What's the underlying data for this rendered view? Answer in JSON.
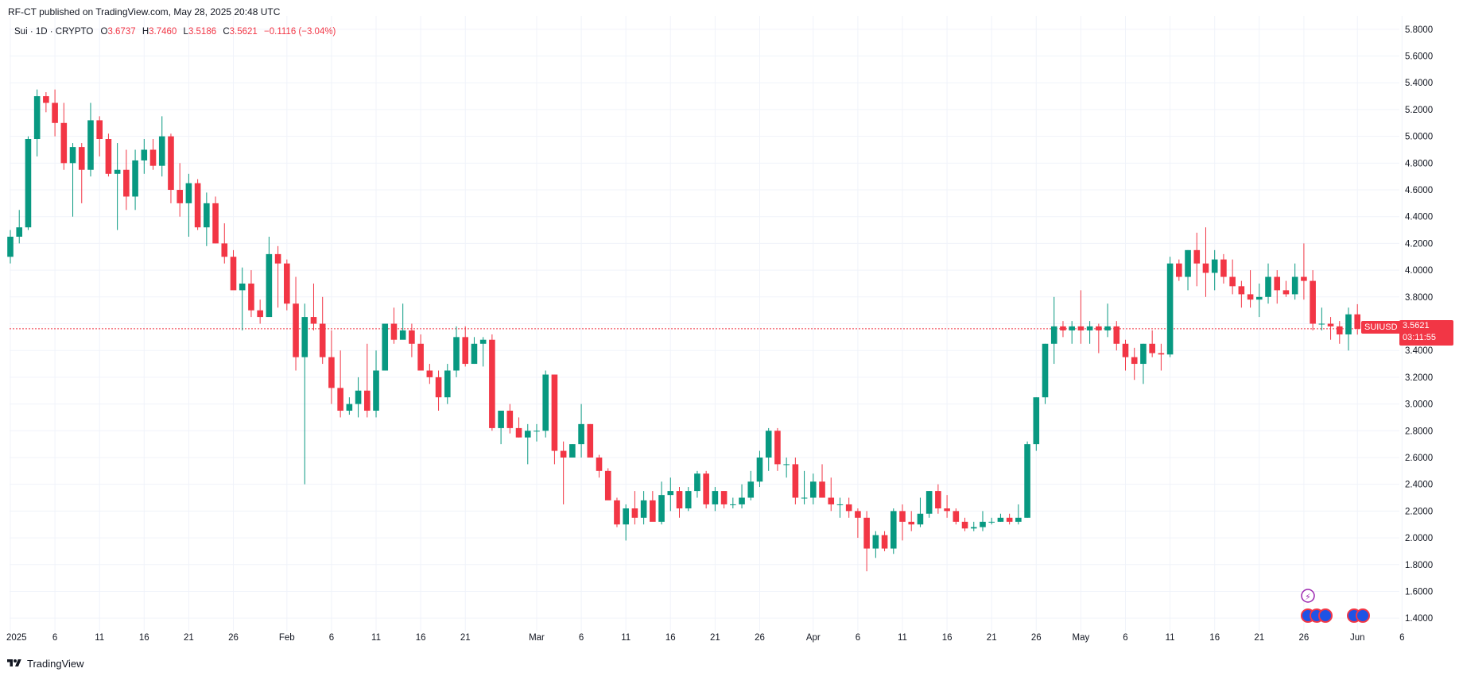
{
  "header": {
    "published": "RF-CT published on TradingView.com, May 28, 2025 20:48 UTC"
  },
  "legend": {
    "symbol": "Sui · 1D · CRYPTO",
    "o_label": "O",
    "o_value": "3.6737",
    "h_label": "H",
    "h_value": "3.7460",
    "l_label": "L",
    "l_value": "3.5186",
    "c_label": "C",
    "c_value": "3.5621",
    "change": "−0.1116 (−3.04%)"
  },
  "price_marker": {
    "ticker": "SUIUSD",
    "price": "3.5621",
    "countdown": "03:11:55"
  },
  "footer": {
    "brand": "TradingView"
  },
  "colors": {
    "up": "#089981",
    "down": "#f23645",
    "grid": "#f0f3fa",
    "axis_text": "#131722"
  },
  "chart_data": {
    "type": "candlestick",
    "ylim": [
      1.3,
      5.9
    ],
    "y_ticks": [
      "1.4000",
      "1.6000",
      "1.8000",
      "2.0000",
      "2.2000",
      "2.4000",
      "2.6000",
      "2.8000",
      "3.0000",
      "3.2000",
      "3.4000",
      "3.6000",
      "3.8000",
      "4.0000",
      "4.2000",
      "4.4000",
      "4.6000",
      "4.8000",
      "5.0000",
      "5.2000",
      "5.4000",
      "5.6000",
      "5.8000"
    ],
    "x_ticks": [
      {
        "label": "2025",
        "day": 0
      },
      {
        "label": "6",
        "day": 5
      },
      {
        "label": "11",
        "day": 10
      },
      {
        "label": "16",
        "day": 15
      },
      {
        "label": "21",
        "day": 20
      },
      {
        "label": "26",
        "day": 25
      },
      {
        "label": "Feb",
        "day": 31
      },
      {
        "label": "6",
        "day": 36
      },
      {
        "label": "11",
        "day": 41
      },
      {
        "label": "16",
        "day": 46
      },
      {
        "label": "21",
        "day": 51
      },
      {
        "label": "Mar",
        "day": 59
      },
      {
        "label": "6",
        "day": 64
      },
      {
        "label": "11",
        "day": 69
      },
      {
        "label": "16",
        "day": 74
      },
      {
        "label": "21",
        "day": 79
      },
      {
        "label": "26",
        "day": 84
      },
      {
        "label": "Apr",
        "day": 90
      },
      {
        "label": "6",
        "day": 95
      },
      {
        "label": "11",
        "day": 100
      },
      {
        "label": "16",
        "day": 105
      },
      {
        "label": "21",
        "day": 110
      },
      {
        "label": "26",
        "day": 115
      },
      {
        "label": "May",
        "day": 120
      },
      {
        "label": "6",
        "day": 125
      },
      {
        "label": "11",
        "day": 130
      },
      {
        "label": "16",
        "day": 135
      },
      {
        "label": "21",
        "day": 140
      },
      {
        "label": "26",
        "day": 145
      },
      {
        "label": "Jun",
        "day": 151
      },
      {
        "label": "6",
        "day": 156
      }
    ],
    "last_price": 3.5621,
    "candles_ohlc": [
      [
        4.1,
        4.3,
        4.05,
        4.25
      ],
      [
        4.25,
        4.45,
        4.2,
        4.32
      ],
      [
        4.32,
        5.0,
        4.3,
        4.98
      ],
      [
        4.98,
        5.35,
        4.85,
        5.3
      ],
      [
        5.3,
        5.33,
        5.18,
        5.25
      ],
      [
        5.25,
        5.35,
        5.0,
        5.1
      ],
      [
        5.1,
        5.25,
        4.75,
        4.8
      ],
      [
        4.8,
        4.95,
        4.4,
        4.92
      ],
      [
        4.92,
        4.95,
        4.5,
        4.75
      ],
      [
        4.75,
        5.25,
        4.7,
        5.12
      ],
      [
        5.12,
        5.15,
        4.85,
        4.98
      ],
      [
        4.98,
        5.02,
        4.7,
        4.72
      ],
      [
        4.72,
        4.95,
        4.3,
        4.75
      ],
      [
        4.75,
        4.9,
        4.45,
        4.55
      ],
      [
        4.55,
        4.9,
        4.45,
        4.82
      ],
      [
        4.82,
        4.98,
        4.72,
        4.9
      ],
      [
        4.9,
        4.98,
        4.75,
        4.78
      ],
      [
        4.78,
        5.15,
        4.7,
        5.0
      ],
      [
        5.0,
        5.02,
        4.5,
        4.6
      ],
      [
        4.6,
        4.8,
        4.4,
        4.5
      ],
      [
        4.5,
        4.72,
        4.25,
        4.65
      ],
      [
        4.65,
        4.68,
        4.3,
        4.32
      ],
      [
        4.32,
        4.58,
        4.18,
        4.5
      ],
      [
        4.5,
        4.55,
        4.2,
        4.2
      ],
      [
        4.2,
        4.35,
        4.05,
        4.1
      ],
      [
        4.1,
        4.15,
        3.95,
        3.85
      ],
      [
        3.85,
        4.02,
        3.55,
        3.9
      ],
      [
        3.9,
        4.0,
        3.65,
        3.7
      ],
      [
        3.7,
        3.78,
        3.6,
        3.65
      ],
      [
        3.65,
        4.25,
        3.7,
        4.12
      ],
      [
        4.12,
        4.18,
        3.72,
        4.05
      ],
      [
        4.05,
        4.08,
        3.7,
        3.75
      ],
      [
        3.75,
        3.95,
        3.25,
        3.35
      ],
      [
        3.35,
        3.75,
        2.4,
        3.65
      ],
      [
        3.65,
        3.9,
        3.55,
        3.6
      ],
      [
        3.6,
        3.8,
        3.3,
        3.35
      ],
      [
        3.35,
        3.55,
        3.0,
        3.12
      ],
      [
        3.12,
        3.4,
        2.9,
        2.95
      ],
      [
        2.95,
        3.05,
        2.92,
        3.0
      ],
      [
        3.0,
        3.2,
        2.9,
        3.1
      ],
      [
        3.1,
        3.45,
        2.9,
        2.95
      ],
      [
        2.95,
        3.4,
        2.9,
        3.25
      ],
      [
        3.25,
        3.6,
        3.25,
        3.6
      ],
      [
        3.6,
        3.72,
        3.45,
        3.48
      ],
      [
        3.48,
        3.75,
        3.5,
        3.55
      ],
      [
        3.55,
        3.6,
        3.35,
        3.45
      ],
      [
        3.45,
        3.52,
        3.25,
        3.25
      ],
      [
        3.25,
        3.3,
        3.15,
        3.2
      ],
      [
        3.2,
        3.25,
        2.95,
        3.05
      ],
      [
        3.05,
        3.3,
        3.0,
        3.25
      ],
      [
        3.25,
        3.58,
        3.2,
        3.5
      ],
      [
        3.5,
        3.58,
        3.28,
        3.3
      ],
      [
        3.3,
        3.5,
        3.3,
        3.45
      ],
      [
        3.45,
        3.5,
        3.28,
        3.48
      ],
      [
        3.48,
        3.52,
        2.8,
        2.82
      ],
      [
        2.82,
        2.95,
        2.7,
        2.95
      ],
      [
        2.95,
        3.0,
        2.78,
        2.82
      ],
      [
        2.82,
        2.9,
        2.75,
        2.75
      ],
      [
        2.75,
        2.85,
        2.55,
        2.8
      ],
      [
        2.8,
        2.85,
        2.72,
        2.8
      ],
      [
        2.8,
        3.25,
        2.75,
        3.22
      ],
      [
        3.22,
        3.22,
        2.55,
        2.65
      ],
      [
        2.65,
        2.72,
        2.25,
        2.6
      ],
      [
        2.6,
        2.7,
        2.6,
        2.7
      ],
      [
        2.7,
        3.0,
        2.6,
        2.85
      ],
      [
        2.85,
        2.85,
        2.6,
        2.6
      ],
      [
        2.6,
        2.62,
        2.45,
        2.5
      ],
      [
        2.5,
        2.52,
        2.3,
        2.28
      ],
      [
        2.28,
        2.3,
        2.08,
        2.1
      ],
      [
        2.1,
        2.25,
        1.98,
        2.22
      ],
      [
        2.22,
        2.35,
        2.1,
        2.15
      ],
      [
        2.15,
        2.35,
        2.1,
        2.28
      ],
      [
        2.28,
        2.35,
        2.15,
        2.12
      ],
      [
        2.12,
        2.42,
        2.1,
        2.32
      ],
      [
        2.32,
        2.45,
        2.2,
        2.35
      ],
      [
        2.35,
        2.38,
        2.15,
        2.22
      ],
      [
        2.22,
        2.38,
        2.2,
        2.35
      ],
      [
        2.35,
        2.5,
        2.3,
        2.48
      ],
      [
        2.48,
        2.5,
        2.22,
        2.25
      ],
      [
        2.25,
        2.38,
        2.2,
        2.35
      ],
      [
        2.35,
        2.35,
        2.22,
        2.25
      ],
      [
        2.25,
        2.3,
        2.22,
        2.25
      ],
      [
        2.25,
        2.4,
        2.22,
        2.3
      ],
      [
        2.3,
        2.5,
        2.28,
        2.42
      ],
      [
        2.42,
        2.65,
        2.38,
        2.6
      ],
      [
        2.6,
        2.82,
        2.5,
        2.8
      ],
      [
        2.8,
        2.82,
        2.5,
        2.55
      ],
      [
        2.55,
        2.6,
        2.45,
        2.55
      ],
      [
        2.55,
        2.6,
        2.25,
        2.3
      ],
      [
        2.3,
        2.5,
        2.25,
        2.3
      ],
      [
        2.3,
        2.48,
        2.25,
        2.42
      ],
      [
        2.42,
        2.55,
        2.3,
        2.3
      ],
      [
        2.3,
        2.45,
        2.2,
        2.25
      ],
      [
        2.25,
        2.3,
        2.15,
        2.25
      ],
      [
        2.25,
        2.3,
        2.15,
        2.2
      ],
      [
        2.2,
        2.22,
        2.0,
        2.15
      ],
      [
        2.15,
        2.2,
        1.75,
        1.92
      ],
      [
        1.92,
        2.05,
        1.85,
        2.02
      ],
      [
        2.02,
        2.05,
        1.9,
        1.92
      ],
      [
        1.92,
        2.22,
        1.88,
        2.2
      ],
      [
        2.2,
        2.25,
        1.98,
        2.12
      ],
      [
        2.12,
        2.2,
        2.05,
        2.1
      ],
      [
        2.1,
        2.3,
        2.08,
        2.18
      ],
      [
        2.18,
        2.35,
        2.15,
        2.35
      ],
      [
        2.35,
        2.4,
        2.18,
        2.22
      ],
      [
        2.22,
        2.32,
        2.15,
        2.2
      ],
      [
        2.2,
        2.22,
        2.1,
        2.12
      ],
      [
        2.12,
        2.15,
        2.05,
        2.07
      ],
      [
        2.07,
        2.12,
        2.05,
        2.08
      ],
      [
        2.08,
        2.2,
        2.05,
        2.12
      ],
      [
        2.12,
        2.15,
        2.1,
        2.12
      ],
      [
        2.12,
        2.18,
        2.12,
        2.15
      ],
      [
        2.15,
        2.18,
        2.1,
        2.12
      ],
      [
        2.12,
        2.25,
        2.1,
        2.15
      ],
      [
        2.15,
        2.72,
        2.15,
        2.7
      ],
      [
        2.7,
        3.05,
        2.65,
        3.05
      ],
      [
        3.05,
        3.45,
        3.0,
        3.45
      ],
      [
        3.45,
        3.8,
        3.3,
        3.58
      ],
      [
        3.58,
        3.62,
        3.5,
        3.55
      ],
      [
        3.55,
        3.62,
        3.45,
        3.58
      ],
      [
        3.58,
        3.85,
        3.45,
        3.55
      ],
      [
        3.55,
        3.62,
        3.45,
        3.58
      ],
      [
        3.58,
        3.6,
        3.38,
        3.55
      ],
      [
        3.55,
        3.75,
        3.5,
        3.58
      ],
      [
        3.58,
        3.62,
        3.4,
        3.45
      ],
      [
        3.45,
        3.48,
        3.25,
        3.35
      ],
      [
        3.35,
        3.42,
        3.18,
        3.3
      ],
      [
        3.3,
        3.45,
        3.15,
        3.45
      ],
      [
        3.45,
        3.55,
        3.35,
        3.38
      ],
      [
        3.38,
        3.45,
        3.25,
        3.37
      ],
      [
        3.37,
        4.1,
        3.35,
        4.05
      ],
      [
        4.05,
        4.08,
        3.92,
        3.95
      ],
      [
        3.95,
        4.15,
        3.85,
        4.15
      ],
      [
        4.15,
        4.28,
        3.88,
        4.05
      ],
      [
        4.05,
        4.32,
        3.8,
        3.98
      ],
      [
        3.98,
        4.15,
        3.85,
        4.08
      ],
      [
        4.08,
        4.12,
        3.9,
        3.95
      ],
      [
        3.95,
        4.08,
        3.82,
        3.88
      ],
      [
        3.88,
        3.92,
        3.72,
        3.82
      ],
      [
        3.82,
        4.0,
        3.72,
        3.78
      ],
      [
        3.78,
        3.9,
        3.65,
        3.8
      ],
      [
        3.8,
        4.05,
        3.75,
        3.95
      ],
      [
        3.95,
        4.0,
        3.75,
        3.85
      ],
      [
        3.85,
        3.92,
        3.8,
        3.82
      ],
      [
        3.82,
        4.05,
        3.78,
        3.95
      ],
      [
        3.95,
        4.2,
        3.78,
        3.92
      ],
      [
        3.92,
        4.0,
        3.55,
        3.6
      ],
      [
        3.6,
        3.72,
        3.55,
        3.6
      ],
      [
        3.6,
        3.65,
        3.48,
        3.58
      ],
      [
        3.58,
        3.62,
        3.45,
        3.52
      ],
      [
        3.52,
        3.72,
        3.4,
        3.67
      ],
      [
        3.67,
        3.746,
        3.5186,
        3.5621
      ]
    ]
  }
}
